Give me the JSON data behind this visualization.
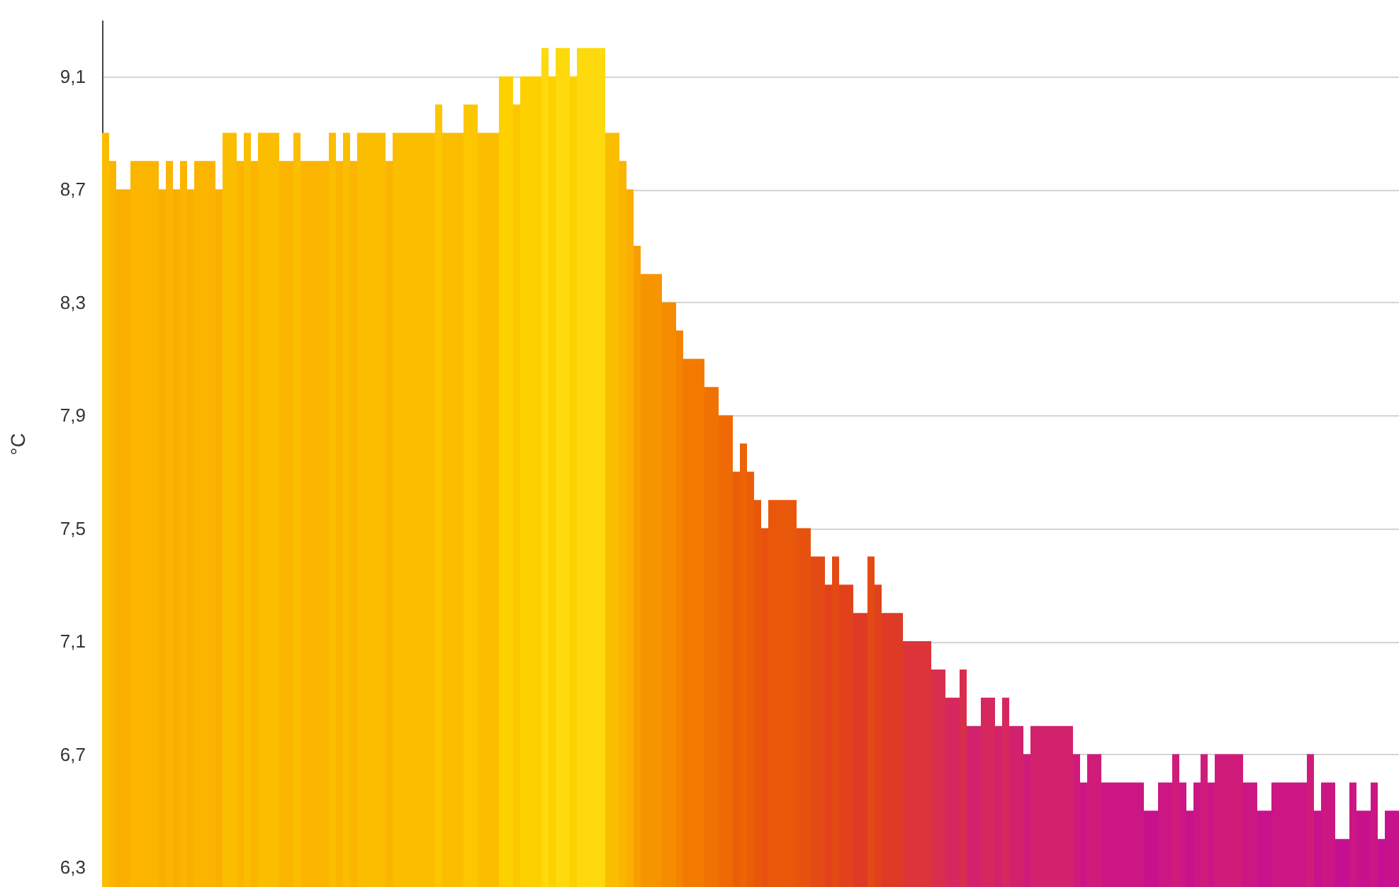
{
  "chart_data": {
    "type": "bar",
    "ylabel": "°C",
    "ylim": [
      6.3,
      9.3
    ],
    "yticks": [
      {
        "value": 6.3,
        "label": "6,3"
      },
      {
        "value": 6.7,
        "label": "6,7"
      },
      {
        "value": 7.1,
        "label": "7,1"
      },
      {
        "value": 7.5,
        "label": "7,5"
      },
      {
        "value": 7.9,
        "label": "7,9"
      },
      {
        "value": 8.3,
        "label": "8,3"
      },
      {
        "value": 8.7,
        "label": "8,7"
      },
      {
        "value": 9.1,
        "label": "9,1"
      }
    ],
    "grid": "y",
    "tick_labels": "y",
    "categories": [
      null,
      null,
      null,
      null,
      null,
      null,
      null,
      null,
      null,
      null,
      null,
      null,
      null,
      null,
      null,
      null,
      null,
      null,
      null,
      null,
      null,
      null,
      null,
      null,
      null,
      null,
      null,
      null,
      null,
      null,
      null,
      null,
      null,
      null,
      null,
      null,
      null,
      null,
      null,
      null,
      null,
      null,
      null,
      null,
      null,
      null,
      null,
      null,
      null,
      null,
      null,
      null,
      null,
      null,
      null,
      null,
      null,
      null,
      null,
      null,
      null,
      null,
      null,
      null,
      null,
      null,
      null,
      null,
      null,
      null,
      null,
      null,
      null,
      null,
      null,
      null,
      null,
      null,
      null,
      null,
      null,
      null,
      null,
      null,
      null,
      null,
      null,
      null,
      null,
      null,
      null,
      null,
      null,
      null,
      null,
      null,
      null,
      null,
      null,
      null,
      null,
      null,
      null,
      null,
      null,
      null,
      null,
      null,
      null,
      null,
      null,
      null,
      null,
      null,
      null,
      null,
      null,
      null,
      null,
      null,
      null,
      null,
      null,
      null,
      null,
      null,
      null,
      null,
      null,
      null,
      null,
      null,
      null,
      null,
      null,
      null,
      null,
      null,
      null,
      null,
      null,
      null,
      null,
      null,
      null,
      null,
      null,
      null,
      null,
      null,
      null,
      null,
      null,
      null,
      null,
      null,
      null,
      null,
      null,
      null,
      null,
      null,
      null,
      null,
      null,
      null,
      null,
      null,
      null,
      null,
      null,
      null,
      null,
      null,
      null,
      null,
      null,
      null,
      null,
      null,
      null,
      null,
      null
    ],
    "values": [
      8.9,
      8.8,
      8.7,
      8.7,
      8.8,
      8.8,
      8.8,
      8.8,
      8.7,
      8.8,
      8.7,
      8.8,
      8.7,
      8.8,
      8.8,
      8.8,
      8.7,
      8.9,
      8.9,
      8.8,
      8.9,
      8.8,
      8.9,
      8.9,
      8.9,
      8.8,
      8.8,
      8.9,
      8.8,
      8.8,
      8.8,
      8.8,
      8.9,
      8.8,
      8.9,
      8.8,
      8.9,
      8.9,
      8.9,
      8.9,
      8.8,
      8.9,
      8.9,
      8.9,
      8.9,
      8.9,
      8.9,
      9.0,
      8.9,
      8.9,
      8.9,
      9.0,
      9.0,
      8.9,
      8.9,
      8.9,
      9.1,
      9.1,
      9.0,
      9.1,
      9.1,
      9.1,
      9.2,
      9.1,
      9.2,
      9.2,
      9.1,
      9.2,
      9.2,
      9.2,
      9.2,
      8.9,
      8.9,
      8.8,
      8.7,
      8.5,
      8.4,
      8.4,
      8.4,
      8.3,
      8.3,
      8.2,
      8.1,
      8.1,
      8.1,
      8.0,
      8.0,
      7.9,
      7.9,
      7.7,
      7.8,
      7.7,
      7.6,
      7.5,
      7.6,
      7.6,
      7.6,
      7.6,
      7.5,
      7.5,
      7.4,
      7.4,
      7.3,
      7.4,
      7.3,
      7.3,
      7.2,
      7.2,
      7.4,
      7.3,
      7.2,
      7.2,
      7.2,
      7.1,
      7.1,
      7.1,
      7.1,
      7.0,
      7.0,
      6.9,
      6.9,
      7.0,
      6.8,
      6.8,
      6.9,
      6.9,
      6.8,
      6.9,
      6.8,
      6.8,
      6.7,
      6.8,
      6.8,
      6.8,
      6.8,
      6.8,
      6.8,
      6.7,
      6.6,
      6.7,
      6.7,
      6.6,
      6.6,
      6.6,
      6.6,
      6.6,
      6.6,
      6.5,
      6.5,
      6.6,
      6.6,
      6.7,
      6.6,
      6.5,
      6.6,
      6.7,
      6.6,
      6.7,
      6.7,
      6.7,
      6.7,
      6.6,
      6.6,
      6.5,
      6.5,
      6.6,
      6.6,
      6.6,
      6.6,
      6.6,
      6.7,
      6.5,
      6.6,
      6.6,
      6.4,
      6.4,
      6.6,
      6.5,
      6.5,
      6.6,
      6.4,
      6.5,
      6.5
    ],
    "colors": [
      "#fbbd00",
      "#fbb500",
      "#faaf00",
      "#faaf00",
      "#fbb500",
      "#fbb500",
      "#fbb500",
      "#fbb500",
      "#faaf00",
      "#fbb500",
      "#faaf00",
      "#fbb500",
      "#faaf00",
      "#fbb500",
      "#fbb500",
      "#fbb500",
      "#faaf00",
      "#fbbd00",
      "#fbbd00",
      "#fbb500",
      "#fbbd00",
      "#fbb500",
      "#fbbd00",
      "#fbbd00",
      "#fbbd00",
      "#fbb500",
      "#fbb500",
      "#fbbd00",
      "#fbb500",
      "#fbb500",
      "#fbb500",
      "#fbb500",
      "#fbbd00",
      "#fbb500",
      "#fbbd00",
      "#fbb500",
      "#fbbd00",
      "#fbbd00",
      "#fbbd00",
      "#fbbd00",
      "#fbb500",
      "#fbbd00",
      "#fbbd00",
      "#fbbd00",
      "#fbbd00",
      "#fbbd00",
      "#fbbd00",
      "#fcc600",
      "#fbbd00",
      "#fbbd00",
      "#fbbd00",
      "#fcc600",
      "#fcc600",
      "#fbbd00",
      "#fbbd00",
      "#fbbd00",
      "#fdd000",
      "#fdd000",
      "#fcc600",
      "#fdd000",
      "#fdd000",
      "#fdd000",
      "#fdd90d",
      "#fdd000",
      "#fdd90d",
      "#fdd90d",
      "#fdd000",
      "#fdd90d",
      "#fdd90d",
      "#fdd90d",
      "#fdd90d",
      "#fbbd00",
      "#fbbd00",
      "#fbb500",
      "#faaf00",
      "#f79e00",
      "#f69500",
      "#f69500",
      "#f69500",
      "#f58c00",
      "#f58c00",
      "#f38300",
      "#f27a00",
      "#f27a00",
      "#f27a00",
      "#f07202",
      "#f07202",
      "#ef6a04",
      "#ef6a04",
      "#eb5e08",
      "#ed6406",
      "#eb5e08",
      "#e9580a",
      "#e7520e",
      "#e9580a",
      "#e9580a",
      "#e9580a",
      "#e9580a",
      "#e7520e",
      "#e7520e",
      "#e44a14",
      "#e44a14",
      "#e1421c",
      "#e44a14",
      "#e1421c",
      "#e1421c",
      "#df3a26",
      "#df3a26",
      "#e44a14",
      "#e1421c",
      "#df3a26",
      "#df3a26",
      "#df3a26",
      "#dc3438",
      "#dc3438",
      "#dc3438",
      "#dc3438",
      "#d92e4c",
      "#d92e4c",
      "#d6285e",
      "#d6285e",
      "#d92e4c",
      "#d2226e",
      "#d2226e",
      "#d6285e",
      "#d6285e",
      "#d2226e",
      "#d6285e",
      "#d2226e",
      "#d2226e",
      "#cf1c7a",
      "#d2226e",
      "#d2226e",
      "#d2226e",
      "#d2226e",
      "#d2226e",
      "#d2226e",
      "#cf1c7a",
      "#cb1684",
      "#cf1c7a",
      "#cf1c7a",
      "#cb1684",
      "#cb1684",
      "#cb1684",
      "#cb1684",
      "#cb1684",
      "#cb1684",
      "#c8128c",
      "#c8128c",
      "#cb1684",
      "#cb1684",
      "#cf1c7a",
      "#cb1684",
      "#c8128c",
      "#cb1684",
      "#cf1c7a",
      "#cb1684",
      "#cf1c7a",
      "#cf1c7a",
      "#cf1c7a",
      "#cf1c7a",
      "#cb1684",
      "#cb1684",
      "#c8128c",
      "#c8128c",
      "#cb1684",
      "#cb1684",
      "#cb1684",
      "#cb1684",
      "#cb1684",
      "#cf1c7a",
      "#c8128c",
      "#cb1684",
      "#cb1684",
      "#c50f92",
      "#c50f92",
      "#cb1684",
      "#c8128c",
      "#c8128c",
      "#cb1684",
      "#c50f92",
      "#c8128c",
      "#c8128c"
    ]
  }
}
